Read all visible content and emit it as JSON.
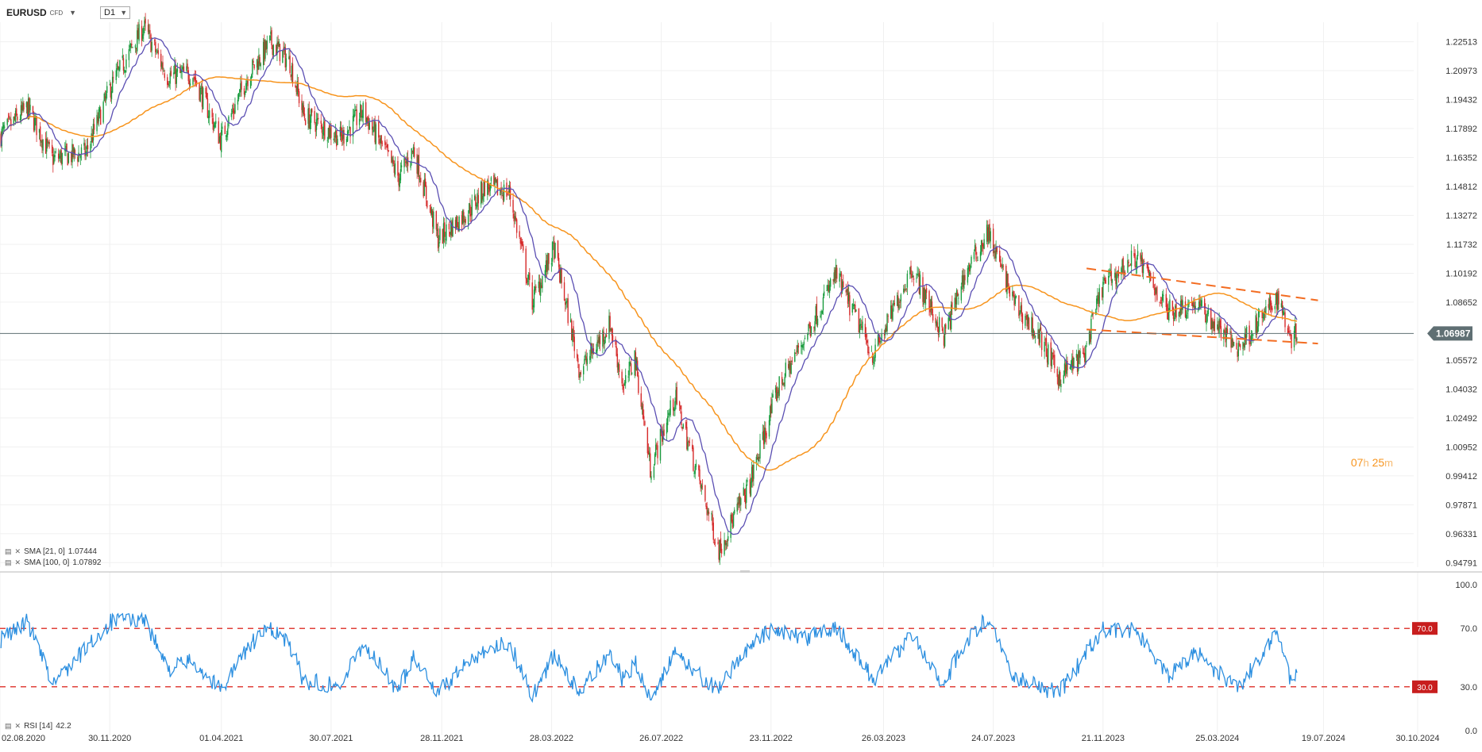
{
  "header": {
    "symbol": "EURUSD",
    "instrument_type": "CFD",
    "timeframe": "D1"
  },
  "indicators": {
    "sma_21": {
      "label": "SMA [21, 0]",
      "value": "1.07444",
      "color": "#5b4fb3"
    },
    "sma_100": {
      "label": "SMA [100, 0]",
      "value": "1.07892",
      "color": "#f7941d"
    },
    "rsi": {
      "label": "RSI [14]",
      "value": "42.2",
      "color": "#2c8fe0"
    }
  },
  "timer": {
    "hours": "07",
    "h_unit": "h",
    "minutes": "25",
    "m_unit": "m"
  },
  "colors": {
    "up": "#1a9c3e",
    "down": "#d62b2b",
    "sma21": "#5b4fb3",
    "sma100": "#f7941d",
    "trend": "#f36c21",
    "rsi": "#2c8fe0",
    "rsi_level": "#e0403a",
    "price_line": "#5f6f73"
  },
  "chart_data": [
    {
      "type": "candlestick",
      "symbol": "EURUSD",
      "y_ticks": [
        "1.22513",
        "1.20973",
        "1.19432",
        "1.17892",
        "1.16352",
        "1.14812",
        "1.13272",
        "1.11732",
        "1.10192",
        "1.08652",
        "1.05572",
        "1.04032",
        "1.02492",
        "1.00952",
        "0.99412",
        "0.97871",
        "0.96331",
        "0.94791"
      ],
      "ylim": [
        0.9455,
        1.2355
      ],
      "x_ticks": [
        "02.08.2020",
        "30.11.2020",
        "01.04.2021",
        "30.07.2021",
        "28.11.2021",
        "28.03.2022",
        "26.07.2022",
        "23.11.2022",
        "26.03.2023",
        "24.07.2023",
        "21.11.2023",
        "25.03.2024",
        "19.07.2024",
        "30.10.2024"
      ],
      "current_price": "1.06987",
      "price_path": [
        [
          "2020-08-02",
          1.175
        ],
        [
          "2020-09-01",
          1.19
        ],
        [
          "2020-09-28",
          1.163
        ],
        [
          "2020-11-04",
          1.166
        ],
        [
          "2020-11-30",
          1.2
        ],
        [
          "2021-01-06",
          1.233
        ],
        [
          "2021-02-01",
          1.207
        ],
        [
          "2021-03-01",
          1.208
        ],
        [
          "2021-03-31",
          1.173
        ],
        [
          "2021-05-01",
          1.208
        ],
        [
          "2021-05-25",
          1.225
        ],
        [
          "2021-06-15",
          1.214
        ],
        [
          "2021-06-30",
          1.186
        ],
        [
          "2021-08-10",
          1.174
        ],
        [
          "2021-09-03",
          1.188
        ],
        [
          "2021-10-12",
          1.153
        ],
        [
          "2021-10-28",
          1.168
        ],
        [
          "2021-11-24",
          1.12
        ],
        [
          "2021-12-31",
          1.137
        ],
        [
          "2022-01-14",
          1.148
        ],
        [
          "2022-02-10",
          1.145
        ],
        [
          "2022-03-07",
          1.087
        ],
        [
          "2022-03-31",
          1.115
        ],
        [
          "2022-04-28",
          1.05
        ],
        [
          "2022-05-31",
          1.075
        ],
        [
          "2022-06-15",
          1.04
        ],
        [
          "2022-06-27",
          1.058
        ],
        [
          "2022-07-14",
          0.998
        ],
        [
          "2022-08-10",
          1.036
        ],
        [
          "2022-09-27",
          0.955
        ],
        [
          "2022-10-31",
          0.99
        ],
        [
          "2022-11-30",
          1.04
        ],
        [
          "2022-12-31",
          1.069
        ],
        [
          "2023-02-02",
          1.101
        ],
        [
          "2023-03-15",
          1.058
        ],
        [
          "2023-04-26",
          1.105
        ],
        [
          "2023-05-31",
          1.068
        ],
        [
          "2023-06-21",
          1.099
        ],
        [
          "2023-07-18",
          1.124
        ],
        [
          "2023-08-15",
          1.087
        ],
        [
          "2023-09-15",
          1.066
        ],
        [
          "2023-10-03",
          1.047
        ],
        [
          "2023-10-31",
          1.058
        ],
        [
          "2023-11-20",
          1.095
        ],
        [
          "2023-12-28",
          1.111
        ],
        [
          "2024-01-31",
          1.082
        ],
        [
          "2024-03-01",
          1.086
        ],
        [
          "2024-04-16",
          1.062
        ],
        [
          "2024-05-30",
          1.089
        ],
        [
          "2024-06-14",
          1.068
        ],
        [
          "2024-06-20",
          1.07
        ]
      ],
      "series": [
        {
          "name": "SMA [21, 0]",
          "last": 1.07444
        },
        {
          "name": "SMA [100, 0]",
          "last": 1.07892
        }
      ],
      "trend_lines": [
        {
          "from": [
            "2023-11-03",
            1.1045
          ],
          "to": [
            "2024-07-13",
            1.0875
          ]
        },
        {
          "from": [
            "2023-11-03",
            1.072
          ],
          "to": [
            "2024-07-13",
            1.0645
          ]
        }
      ]
    },
    {
      "type": "line",
      "name": "RSI [14]",
      "y_ticks": [
        "100.0",
        "70.0",
        "30.0",
        "0.0"
      ],
      "ylim": [
        0,
        100
      ],
      "levels": [
        "70.0",
        "30.0"
      ],
      "last": 42.2,
      "path": [
        [
          "2020-08-02",
          62
        ],
        [
          "2020-09-01",
          75
        ],
        [
          "2020-09-28",
          32
        ],
        [
          "2020-11-04",
          56
        ],
        [
          "2020-11-30",
          74
        ],
        [
          "2021-01-06",
          78
        ],
        [
          "2021-02-01",
          42
        ],
        [
          "2021-03-01",
          48
        ],
        [
          "2021-03-31",
          28
        ],
        [
          "2021-05-01",
          58
        ],
        [
          "2021-05-25",
          71
        ],
        [
          "2021-06-15",
          58
        ],
        [
          "2021-06-30",
          34
        ],
        [
          "2021-08-10",
          31
        ],
        [
          "2021-09-03",
          60
        ],
        [
          "2021-10-12",
          27
        ],
        [
          "2021-10-28",
          52
        ],
        [
          "2021-11-24",
          26
        ],
        [
          "2021-12-31",
          49
        ],
        [
          "2022-01-14",
          56
        ],
        [
          "2022-02-10",
          60
        ],
        [
          "2022-03-07",
          24
        ],
        [
          "2022-03-31",
          52
        ],
        [
          "2022-04-28",
          25
        ],
        [
          "2022-05-31",
          55
        ],
        [
          "2022-06-15",
          33
        ],
        [
          "2022-06-27",
          47
        ],
        [
          "2022-07-14",
          23
        ],
        [
          "2022-08-10",
          52
        ],
        [
          "2022-09-27",
          27
        ],
        [
          "2022-10-31",
          60
        ],
        [
          "2022-11-30",
          70
        ],
        [
          "2022-12-31",
          62
        ],
        [
          "2023-02-02",
          72
        ],
        [
          "2023-03-15",
          35
        ],
        [
          "2023-04-26",
          66
        ],
        [
          "2023-05-31",
          32
        ],
        [
          "2023-06-21",
          58
        ],
        [
          "2023-07-18",
          78
        ],
        [
          "2023-08-15",
          38
        ],
        [
          "2023-09-15",
          30
        ],
        [
          "2023-10-03",
          25
        ],
        [
          "2023-10-31",
          50
        ],
        [
          "2023-11-20",
          70
        ],
        [
          "2023-12-28",
          68
        ],
        [
          "2024-01-31",
          38
        ],
        [
          "2024-03-01",
          54
        ],
        [
          "2024-04-16",
          28
        ],
        [
          "2024-05-30",
          68
        ],
        [
          "2024-06-14",
          32
        ],
        [
          "2024-06-20",
          42.2
        ]
      ]
    }
  ]
}
